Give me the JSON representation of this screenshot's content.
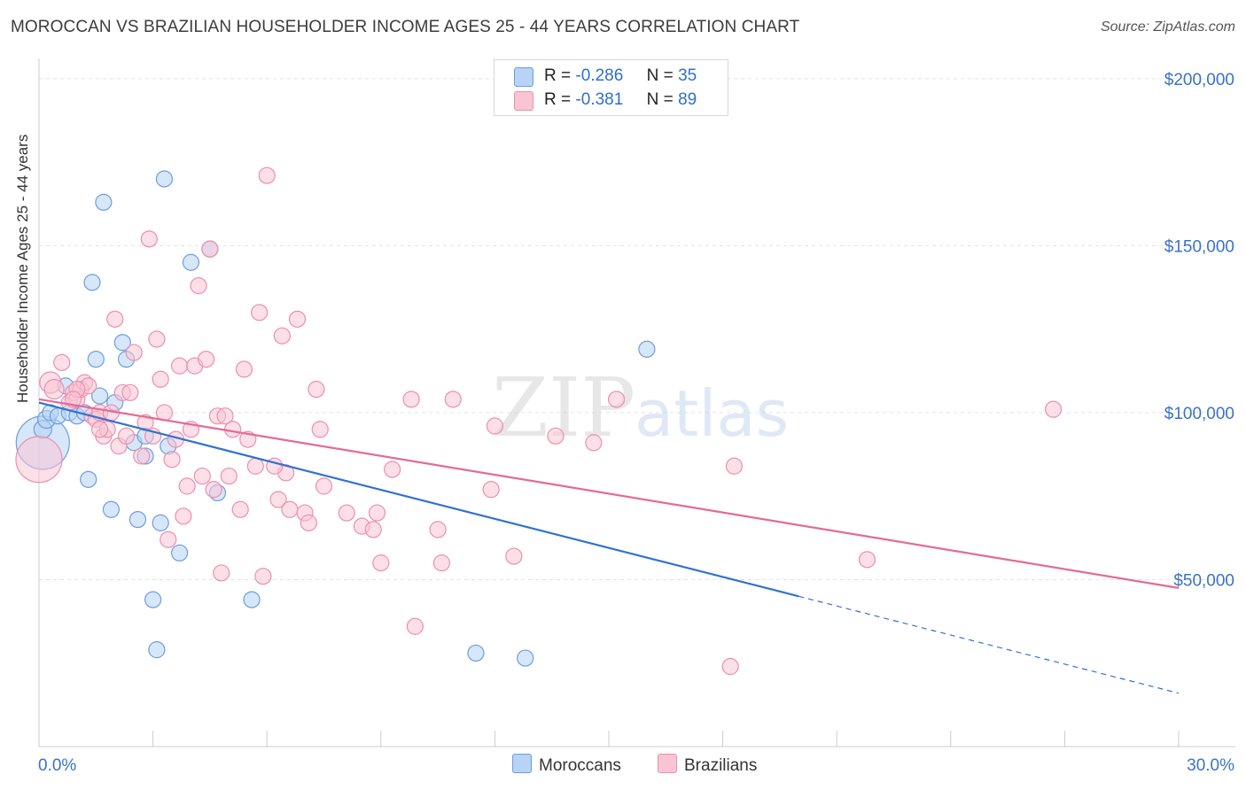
{
  "title": "MOROCCAN VS BRAZILIAN HOUSEHOLDER INCOME AGES 25 - 44 YEARS CORRELATION CHART",
  "source": "Source: ZipAtlas.com",
  "watermark": {
    "part1": "ZIP",
    "part2": "atlas"
  },
  "colors": {
    "moroccan_fill": "#b7d3f5",
    "moroccan_stroke": "#6d9de0",
    "moroccan_line": "#2f72d2",
    "brazilian_fill": "#f9c4d3",
    "brazilian_stroke": "#ec8fae",
    "brazilian_line": "#e46a93",
    "tick_label": "#3a72c8"
  },
  "legend": {
    "rows": [
      {
        "r_label": "R =",
        "r_value": "-0.286",
        "n_label": "N =",
        "n_value": "35"
      },
      {
        "r_label": "R =",
        "r_value": " -0.381",
        "n_label": "N =",
        "n_value": "89"
      }
    ]
  },
  "bottom_legend": {
    "moroccans": "Moroccans",
    "brazilians": "Brazilians"
  },
  "chart_data": {
    "type": "scatter",
    "xlabel": "",
    "ylabel": "Householder Income Ages 25 - 44 years",
    "x_range": [
      0,
      30
    ],
    "y_range": [
      0,
      205000
    ],
    "x_tick_labels": [
      {
        "value": 0,
        "label": "0.0%"
      },
      {
        "value": 30,
        "label": "30.0%"
      }
    ],
    "y_tick_labels": [
      {
        "value": 50000,
        "label": "$50,000"
      },
      {
        "value": 100000,
        "label": "$100,000"
      },
      {
        "value": 150000,
        "label": "$150,000"
      },
      {
        "value": 200000,
        "label": "$200,000"
      }
    ],
    "series": [
      {
        "name": "Moroccans",
        "trend": {
          "x0": 0,
          "y0": 103000,
          "x1": 20.0,
          "y1": 45000,
          "dash_to_x": 30,
          "dash_to_y": 16000
        },
        "points": [
          [
            0.1,
            91000,
            30
          ],
          [
            0.1,
            95000,
            10
          ],
          [
            0.2,
            98000,
            10
          ],
          [
            0.3,
            100000,
            9
          ],
          [
            0.5,
            99000,
            9
          ],
          [
            0.7,
            108000,
            9
          ],
          [
            0.8,
            100000,
            9
          ],
          [
            1.0,
            99000,
            9
          ],
          [
            1.2,
            100000,
            9
          ],
          [
            1.3,
            80000,
            9
          ],
          [
            1.4,
            139000,
            9
          ],
          [
            1.5,
            116000,
            9
          ],
          [
            1.6,
            105000,
            9
          ],
          [
            1.7,
            163000,
            9
          ],
          [
            1.9,
            71000,
            9
          ],
          [
            2.0,
            103000,
            9
          ],
          [
            2.2,
            121000,
            9
          ],
          [
            2.3,
            116000,
            9
          ],
          [
            2.5,
            91000,
            9
          ],
          [
            2.6,
            68000,
            9
          ],
          [
            2.8,
            87000,
            9
          ],
          [
            3.0,
            44000,
            9
          ],
          [
            3.1,
            29000,
            9
          ],
          [
            3.2,
            67000,
            9
          ],
          [
            3.3,
            170000,
            9
          ],
          [
            3.4,
            90000,
            9
          ],
          [
            3.7,
            58000,
            9
          ],
          [
            4.0,
            145000,
            9
          ],
          [
            4.5,
            149000,
            9
          ],
          [
            4.7,
            76000,
            9
          ],
          [
            5.6,
            44000,
            9
          ],
          [
            11.5,
            28000,
            9
          ],
          [
            12.8,
            26500,
            9
          ],
          [
            16.0,
            119000,
            9
          ],
          [
            2.8,
            93000,
            9
          ]
        ]
      },
      {
        "name": "Brazilians",
        "trend": {
          "x0": 0,
          "y0": 104000,
          "x1": 30,
          "y1": 47500
        },
        "points": [
          [
            0.0,
            86000,
            26
          ],
          [
            0.3,
            109000,
            12
          ],
          [
            0.4,
            107000,
            11
          ],
          [
            0.6,
            115000,
            9
          ],
          [
            0.8,
            103000,
            9
          ],
          [
            0.9,
            106000,
            9
          ],
          [
            1.0,
            104000,
            9
          ],
          [
            1.1,
            107000,
            9
          ],
          [
            1.2,
            109000,
            9
          ],
          [
            1.3,
            108000,
            9
          ],
          [
            1.4,
            99000,
            9
          ],
          [
            1.5,
            98000,
            9
          ],
          [
            1.6,
            100000,
            9
          ],
          [
            1.7,
            93000,
            9
          ],
          [
            1.8,
            95000,
            9
          ],
          [
            1.9,
            100000,
            9
          ],
          [
            2.0,
            128000,
            9
          ],
          [
            2.1,
            90000,
            9
          ],
          [
            2.2,
            106000,
            9
          ],
          [
            2.4,
            106000,
            9
          ],
          [
            2.5,
            118000,
            9
          ],
          [
            2.7,
            87000,
            9
          ],
          [
            2.8,
            97000,
            9
          ],
          [
            2.9,
            152000,
            9
          ],
          [
            3.0,
            93000,
            9
          ],
          [
            3.1,
            122000,
            9
          ],
          [
            3.2,
            110000,
            9
          ],
          [
            3.3,
            100000,
            9
          ],
          [
            3.4,
            62000,
            9
          ],
          [
            3.5,
            86000,
            9
          ],
          [
            3.6,
            92000,
            9
          ],
          [
            3.7,
            114000,
            9
          ],
          [
            3.8,
            69000,
            9
          ],
          [
            3.9,
            78000,
            9
          ],
          [
            4.0,
            95000,
            9
          ],
          [
            4.1,
            114000,
            9
          ],
          [
            4.2,
            138000,
            9
          ],
          [
            4.3,
            81000,
            9
          ],
          [
            4.4,
            116000,
            9
          ],
          [
            4.5,
            149000,
            9
          ],
          [
            4.6,
            77000,
            9
          ],
          [
            4.7,
            99000,
            9
          ],
          [
            4.8,
            52000,
            9
          ],
          [
            5.0,
            81000,
            9
          ],
          [
            5.1,
            95000,
            9
          ],
          [
            5.3,
            71000,
            9
          ],
          [
            5.4,
            113000,
            9
          ],
          [
            5.5,
            92000,
            9
          ],
          [
            5.7,
            84000,
            9
          ],
          [
            5.8,
            130000,
            9
          ],
          [
            5.9,
            51000,
            9
          ],
          [
            6.0,
            171000,
            9
          ],
          [
            6.3,
            74000,
            9
          ],
          [
            6.4,
            123000,
            9
          ],
          [
            6.5,
            82000,
            9
          ],
          [
            6.6,
            71000,
            9
          ],
          [
            6.8,
            128000,
            9
          ],
          [
            7.0,
            70000,
            9
          ],
          [
            7.1,
            67000,
            9
          ],
          [
            7.3,
            107000,
            9
          ],
          [
            7.4,
            95000,
            9
          ],
          [
            7.5,
            78000,
            9
          ],
          [
            8.1,
            70000,
            9
          ],
          [
            8.5,
            66000,
            9
          ],
          [
            8.8,
            65000,
            9
          ],
          [
            8.9,
            70000,
            9
          ],
          [
            9.0,
            55000,
            9
          ],
          [
            9.3,
            83000,
            9
          ],
          [
            9.8,
            104000,
            9
          ],
          [
            9.9,
            36000,
            9
          ],
          [
            10.5,
            65000,
            9
          ],
          [
            10.6,
            55000,
            9
          ],
          [
            10.9,
            104000,
            9
          ],
          [
            11.9,
            77000,
            9
          ],
          [
            12.0,
            96000,
            9
          ],
          [
            12.5,
            57000,
            9
          ],
          [
            13.6,
            93000,
            9
          ],
          [
            14.6,
            91000,
            9
          ],
          [
            15.2,
            104000,
            9
          ],
          [
            18.2,
            24000,
            9
          ],
          [
            18.3,
            84000,
            9
          ],
          [
            21.8,
            56000,
            9
          ],
          [
            26.7,
            101000,
            9
          ],
          [
            1.0,
            107000,
            9
          ],
          [
            0.9,
            104000,
            9
          ],
          [
            1.6,
            95000,
            9
          ],
          [
            2.3,
            93000,
            9
          ],
          [
            4.9,
            99000,
            9
          ],
          [
            6.2,
            84000,
            9
          ]
        ]
      }
    ]
  }
}
